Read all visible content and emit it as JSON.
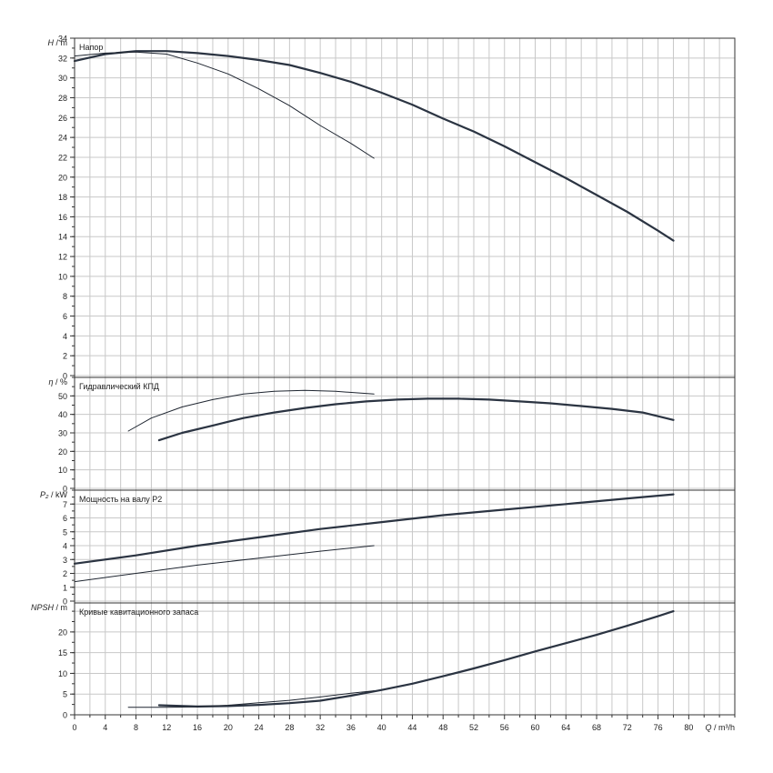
{
  "chart_data": [
    {
      "type": "line",
      "title": "Напор",
      "ylabel": {
        "symbol": "H",
        "unit": "m"
      },
      "ylim": [
        0,
        34
      ],
      "yticks": [
        0,
        2,
        4,
        6,
        8,
        10,
        12,
        14,
        16,
        18,
        20,
        22,
        24,
        26,
        28,
        30,
        32,
        34
      ],
      "series": [
        {
          "x": [
            0,
            4,
            8,
            12,
            16,
            20,
            24,
            28,
            32,
            36,
            40,
            44,
            48,
            52,
            56,
            60,
            64,
            68,
            72,
            76,
            78
          ],
          "y": [
            31.7,
            32.4,
            32.7,
            32.7,
            32.5,
            32.2,
            31.8,
            31.3,
            30.5,
            29.6,
            28.5,
            27.3,
            25.9,
            24.6,
            23.1,
            21.5,
            19.9,
            18.2,
            16.5,
            14.6,
            13.6
          ],
          "style": "thick"
        },
        {
          "x": [
            0,
            4,
            8,
            12,
            16,
            20,
            24,
            28,
            32,
            36,
            39
          ],
          "y": [
            32.2,
            32.5,
            32.6,
            32.4,
            31.5,
            30.4,
            28.9,
            27.2,
            25.2,
            23.4,
            21.9
          ],
          "style": "thin"
        }
      ]
    },
    {
      "type": "line",
      "title": "Гидравлический КПД",
      "ylabel": {
        "symbol": "η",
        "unit": "%"
      },
      "ylim": [
        0,
        60
      ],
      "yticks": [
        0,
        10,
        20,
        30,
        40,
        50
      ],
      "series": [
        {
          "x": [
            11,
            14,
            18,
            22,
            26,
            30,
            34,
            38,
            42,
            46,
            50,
            54,
            58,
            62,
            66,
            70,
            74,
            78
          ],
          "y": [
            26,
            30,
            34,
            38,
            41,
            43.5,
            45.5,
            47,
            48,
            48.5,
            48.5,
            48,
            47,
            46,
            44.5,
            43,
            41,
            37
          ],
          "style": "thick"
        },
        {
          "x": [
            7,
            10,
            14,
            18,
            22,
            26,
            30,
            34,
            39
          ],
          "y": [
            31,
            38,
            44,
            48,
            51,
            52.5,
            53,
            52.5,
            51
          ],
          "style": "thin"
        }
      ]
    },
    {
      "type": "line",
      "title": "Мощность на валу P2",
      "ylabel": {
        "symbol": "P₂",
        "unit": "kW"
      },
      "ylim": [
        0,
        8
      ],
      "yticks": [
        0,
        1,
        2,
        3,
        4,
        5,
        6,
        7
      ],
      "series": [
        {
          "x": [
            0,
            8,
            16,
            24,
            32,
            40,
            48,
            56,
            64,
            72,
            78
          ],
          "y": [
            2.7,
            3.3,
            4.0,
            4.6,
            5.2,
            5.7,
            6.2,
            6.6,
            7.0,
            7.4,
            7.7
          ],
          "style": "thick"
        },
        {
          "x": [
            0,
            8,
            16,
            24,
            32,
            39
          ],
          "y": [
            1.4,
            2.0,
            2.6,
            3.1,
            3.6,
            4.0
          ],
          "style": "thin"
        }
      ]
    },
    {
      "type": "line",
      "title": "Кривые кавитационного запаса",
      "ylabel": {
        "symbol": "NPSH",
        "unit": "m"
      },
      "ylim": [
        0,
        27
      ],
      "yticks": [
        0,
        5,
        10,
        15,
        20
      ],
      "series": [
        {
          "x": [
            11,
            16,
            20,
            24,
            28,
            32,
            36,
            40,
            44,
            48,
            52,
            56,
            60,
            64,
            68,
            72,
            76,
            78
          ],
          "y": [
            2.3,
            2.0,
            2.1,
            2.4,
            2.8,
            3.4,
            4.6,
            6.0,
            7.5,
            9.3,
            11.2,
            13.2,
            15.3,
            17.3,
            19.3,
            21.5,
            23.8,
            25.0
          ],
          "style": "thick"
        },
        {
          "x": [
            7,
            12,
            16,
            20,
            24,
            28,
            32,
            36,
            39
          ],
          "y": [
            1.8,
            1.8,
            1.9,
            2.3,
            2.9,
            3.5,
            4.3,
            5.2,
            5.8
          ],
          "style": "thin"
        }
      ]
    }
  ],
  "x_axis": {
    "symbol": "Q",
    "unit": "m³/h",
    "ticks": [
      0,
      4,
      8,
      12,
      16,
      20,
      24,
      28,
      32,
      36,
      40,
      44,
      48,
      52,
      56,
      60,
      64,
      68,
      72,
      76,
      80
    ],
    "xlim": [
      0,
      86
    ]
  }
}
